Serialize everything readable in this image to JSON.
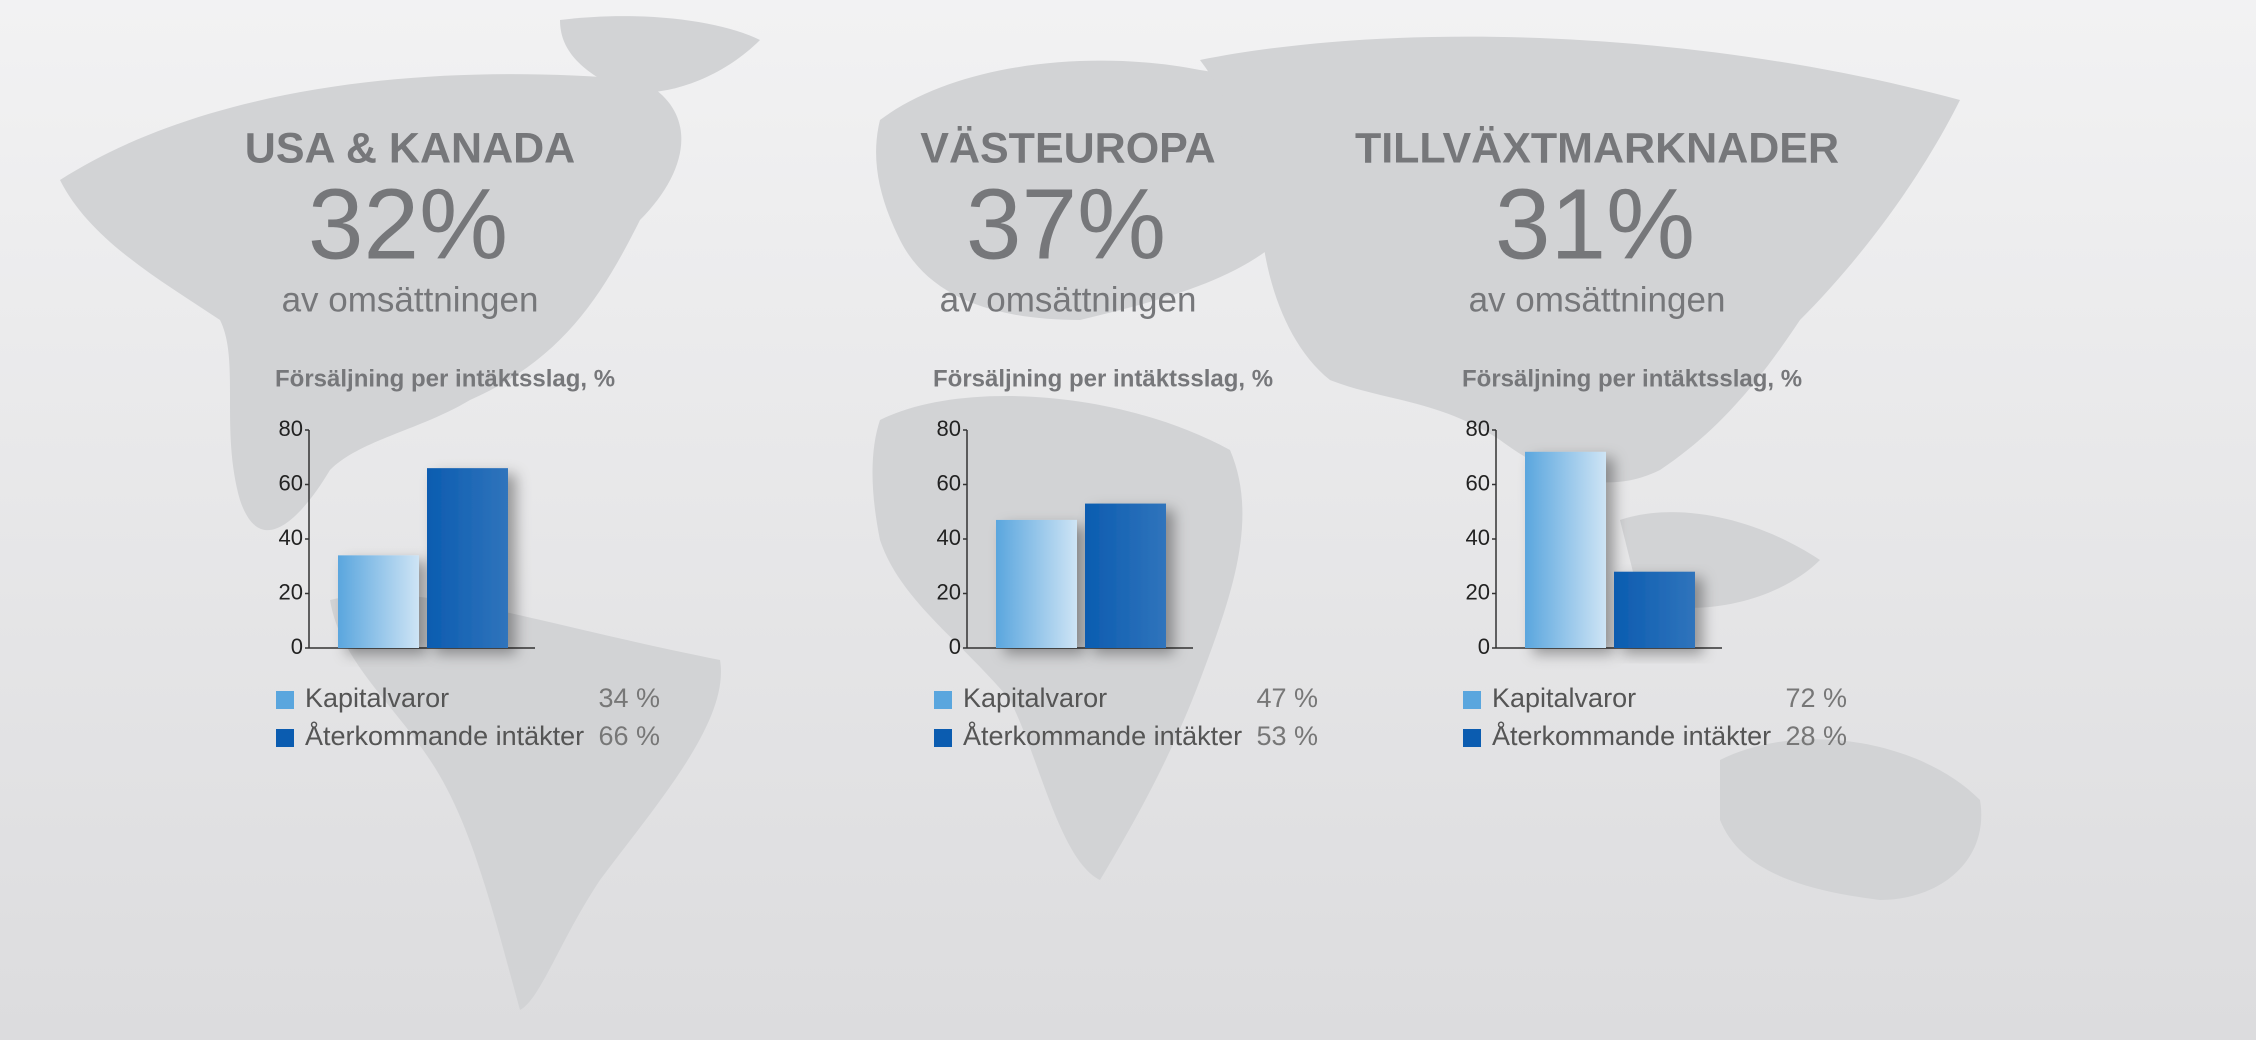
{
  "chart_data": [
    {
      "type": "bar",
      "region": "USA & KANADA",
      "share": "32%",
      "share_note": "av omsättningen",
      "title": "Försäljning per intäktsslag, %",
      "categories": [
        "Kapitalvaror",
        "Återkommande intäkter"
      ],
      "values": [
        34,
        66
      ],
      "value_labels": [
        "34 %",
        "66 %"
      ],
      "colors": [
        "#5aa6de",
        "#0b5cb0"
      ],
      "ylim": [
        0,
        80
      ],
      "yticks": [
        0,
        20,
        40,
        60,
        80
      ]
    },
    {
      "type": "bar",
      "region": "VÄSTEUROPA",
      "share": "37%",
      "share_note": "av omsättningen",
      "title": "Försäljning per intäktsslag, %",
      "categories": [
        "Kapitalvaror",
        "Återkommande intäkter"
      ],
      "values": [
        47,
        53
      ],
      "value_labels": [
        "47 %",
        "53 %"
      ],
      "colors": [
        "#5aa6de",
        "#0b5cb0"
      ],
      "ylim": [
        0,
        80
      ],
      "yticks": [
        0,
        20,
        40,
        60,
        80
      ]
    },
    {
      "type": "bar",
      "region": "TILLVÄXTMARKNADER",
      "share": "31%",
      "share_note": "av omsättningen",
      "title": "Försäljning per intäktsslag, %",
      "categories": [
        "Kapitalvaror",
        "Återkommande intäkter"
      ],
      "values": [
        72,
        28
      ],
      "value_labels": [
        "72 %",
        "28 %"
      ],
      "colors": [
        "#5aa6de",
        "#0b5cb0"
      ],
      "ylim": [
        0,
        80
      ],
      "yticks": [
        0,
        20,
        40,
        60,
        80
      ]
    }
  ]
}
